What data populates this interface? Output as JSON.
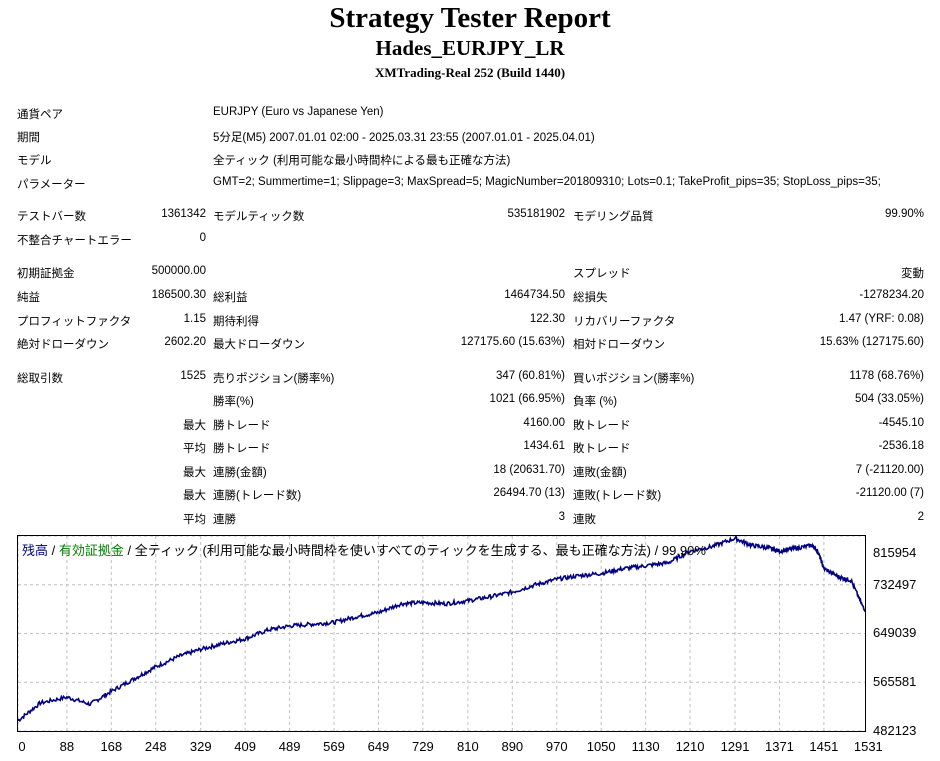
{
  "header": {
    "title": "Strategy Tester Report",
    "ea_name": "Hades_EURJPY_LR",
    "server": "XMTrading-Real 252 (Build 1440)"
  },
  "info": {
    "pair_label": "通貨ペア",
    "pair_value": "EURJPY (Euro vs Japanese Yen)",
    "period_label": "期間",
    "period_value": "5分足(M5) 2007.01.01 02:00 - 2025.03.31 23:55 (2007.01.01 - 2025.04.01)",
    "model_label": "モデル",
    "model_value": "全ティック (利用可能な最小時間枠による最も正確な方法)",
    "params_label": "パラメーター",
    "params_value": "GMT=2; Summertime=1; Slippage=3; MaxSpread=5; MagicNumber=201809310; Lots=0.1; TakeProfit_pips=35; StopLoss_pips=35;"
  },
  "stats": {
    "bars_label": "テストバー数",
    "bars_value": "1361342",
    "ticks_label": "モデルティック数",
    "ticks_value": "535181902",
    "quality_label": "モデリング品質",
    "quality_value": "99.90%",
    "mismatch_label": "不整合チャートエラー",
    "mismatch_value": "0",
    "deposit_label": "初期証拠金",
    "deposit_value": "500000.00",
    "spread_label": "スプレッド",
    "spread_value": "変動",
    "net_label": "純益",
    "net_value": "186500.30",
    "gross_profit_label": "総利益",
    "gross_profit_value": "1464734.50",
    "gross_loss_label": "総損失",
    "gross_loss_value": "-1278234.20",
    "pf_label": "プロフィットファクタ",
    "pf_value": "1.15",
    "payoff_label": "期待利得",
    "payoff_value": "122.30",
    "rf_label": "リカバリーファクタ",
    "rf_value": "1.47 (YRF: 0.08)",
    "abs_dd_label": "絶対ドローダウン",
    "abs_dd_value": "2602.20",
    "max_dd_label": "最大ドローダウン",
    "max_dd_value": "127175.60 (15.63%)",
    "rel_dd_label": "相対ドローダウン",
    "rel_dd_value": "15.63% (127175.60)",
    "trades_label": "総取引数",
    "trades_value": "1525",
    "short_label": "売りポジション(勝率%)",
    "short_value": "347 (60.81%)",
    "long_label": "買いポジション(勝率%)",
    "long_value": "1178 (68.76%)",
    "win_pct_label": "勝率(%)",
    "win_pct_value": "1021 (66.95%)",
    "loss_pct_label": "負率 (%)",
    "loss_pct_value": "504 (33.05%)",
    "max_label": "最大",
    "avg_label": "平均",
    "win_trade_label": "勝トレード",
    "loss_trade_label": "敗トレード",
    "max_win_value": "4160.00",
    "max_loss_value": "-4545.10",
    "avg_win_value": "1434.61",
    "avg_loss_value": "-2536.18",
    "cons_win_amt_label": "連勝(金額)",
    "cons_win_amt_value": "18 (20631.70)",
    "cons_loss_amt_label": "連敗(金額)",
    "cons_loss_amt_value": "7 (-21120.00)",
    "cons_win_cnt_label": "連勝(トレード数)",
    "cons_win_cnt_value": "26494.70 (13)",
    "cons_loss_cnt_label": "連敗(トレード数)",
    "cons_loss_cnt_value": "-21120.00 (7)",
    "avg_cons_win_label": "連勝",
    "avg_cons_win_value": "3",
    "avg_cons_loss_label": "連敗",
    "avg_cons_loss_value": "2"
  },
  "chart_data": {
    "type": "line",
    "legend": {
      "balance": "残高",
      "sep1": " / ",
      "equity": "有効証拠金",
      "sep2": " / ",
      "model_text": "全ティック (利用可能な最小時間枠を使いすべてのティックを生成する、最も正確な方法) / 99.90%"
    },
    "x_ticks": [
      "0",
      "88",
      "168",
      "248",
      "329",
      "409",
      "489",
      "569",
      "649",
      "729",
      "810",
      "890",
      "970",
      "1050",
      "1130",
      "1210",
      "1291",
      "1371",
      "1451",
      "1531"
    ],
    "y_ticks": [
      "815954",
      "732497",
      "649039",
      "565581",
      "482123"
    ],
    "xlim": [
      0,
      1525
    ],
    "ylim": [
      482123,
      815954
    ],
    "series": [
      {
        "color": "#000080",
        "x": [
          0,
          40,
          88,
          130,
          168,
          210,
          248,
          290,
          329,
          370,
          409,
          450,
          489,
          530,
          569,
          610,
          649,
          690,
          729,
          770,
          810,
          850,
          890,
          930,
          970,
          1010,
          1050,
          1090,
          1130,
          1170,
          1210,
          1250,
          1291,
          1320,
          1350,
          1371,
          1400,
          1430,
          1440,
          1451,
          1480,
          1500,
          1525
        ],
        "y": [
          500000,
          530000,
          540000,
          528000,
          550000,
          572000,
          592000,
          610000,
          622000,
          632000,
          640000,
          655000,
          662000,
          665000,
          668000,
          678000,
          685000,
          700000,
          702000,
          700000,
          705000,
          712000,
          720000,
          732000,
          742000,
          748000,
          752000,
          760000,
          765000,
          770000,
          790000,
          798000,
          812000,
          800000,
          796000,
          790000,
          795000,
          800000,
          790000,
          760000,
          745000,
          740000,
          686500
        ]
      }
    ]
  }
}
